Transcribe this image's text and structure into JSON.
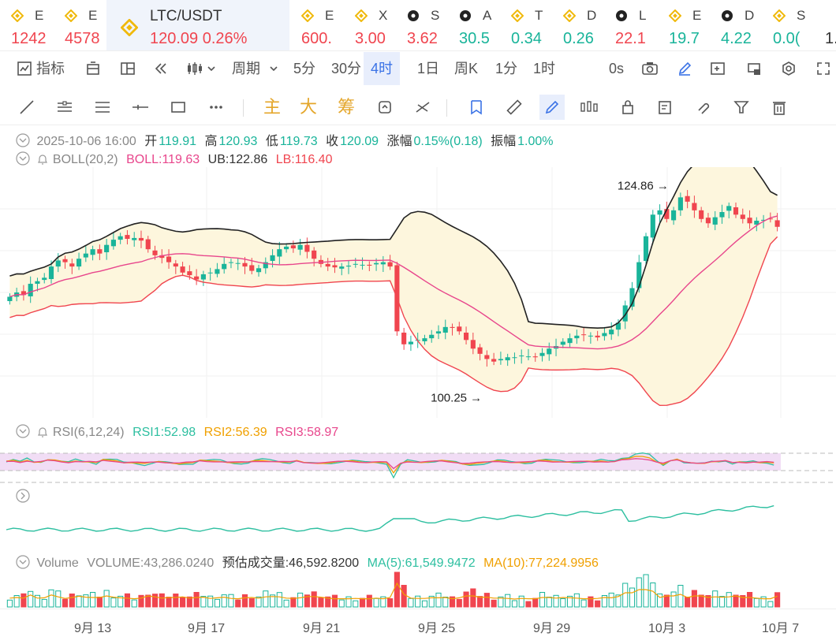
{
  "ticker": [
    {
      "name": "E",
      "price": "1242",
      "dir": "dn",
      "icon": "binance-icon"
    },
    {
      "name": "E",
      "price": "4578",
      "dir": "dn",
      "icon": "binance-icon"
    },
    {
      "name": "LTC/USDT",
      "price": "120.09",
      "change": "0.26%",
      "dir": "dn",
      "icon": "binance-icon",
      "active": true
    },
    {
      "name": "E",
      "price": "600.",
      "dir": "dn",
      "icon": "binance-icon"
    },
    {
      "name": "X",
      "price": "3.00",
      "dir": "dn",
      "icon": "binance-icon"
    },
    {
      "name": "S",
      "price": "3.62",
      "dir": "dn",
      "icon": "dark-coin-icon"
    },
    {
      "name": "A",
      "price": "30.5",
      "dir": "up",
      "icon": "dark-coin-icon"
    },
    {
      "name": "T",
      "price": "0.34",
      "dir": "up",
      "icon": "binance-icon"
    },
    {
      "name": "D",
      "price": "0.26",
      "dir": "up",
      "icon": "binance-icon"
    },
    {
      "name": "L",
      "price": "22.1",
      "dir": "dn",
      "icon": "dark-coin-icon"
    },
    {
      "name": "E",
      "price": "19.7",
      "dir": "up",
      "icon": "binance-icon"
    },
    {
      "name": "D",
      "price": "4.22",
      "dir": "up",
      "icon": "dark-coin-icon"
    },
    {
      "name": "S",
      "price": "0.0(",
      "dir": "up",
      "icon": "binance-icon"
    },
    {
      "name": "",
      "price": "1.",
      "dir": "dk",
      "icon": ""
    }
  ],
  "toolbar": {
    "indicators_label": "指标",
    "period_label": "周期",
    "intervals": [
      "5分",
      "30分",
      "4时",
      "1日",
      "周K",
      "1分",
      "1时"
    ],
    "selected_interval": "4时",
    "countdown": "0s"
  },
  "drawbar": {
    "main": "主",
    "big": "大",
    "chips": "筹"
  },
  "ohlc": {
    "datetime": "2025-10-06 16:00",
    "open_label": "开",
    "open": "119.91",
    "high_label": "高",
    "high": "120.93",
    "low_label": "低",
    "low": "119.73",
    "close_label": "收",
    "close": "120.09",
    "change_label": "涨幅",
    "change": "0.15%(0.18)",
    "amp_label": "振幅",
    "amp": "1.00%"
  },
  "boll": {
    "label": "BOLL(20,2)",
    "mid": "BOLL:119.63",
    "ub": "UB:122.86",
    "lb": "LB:116.40"
  },
  "annotations": {
    "high": "124.86",
    "low": "100.25"
  },
  "rsi": {
    "label": "RSI(6,12,24)",
    "rsi1": "RSI1:52.98",
    "rsi2": "RSI2:56.39",
    "rsi3": "RSI3:58.97"
  },
  "volume": {
    "label": "Volume",
    "volume": "VOLUME:43,286.0240",
    "estimate": "预估成交量:46,592.8200",
    "ma5": "MA(5):61,549.9472",
    "ma10": "MA(10):77,224.9956"
  },
  "xaxis": [
    "9月 13",
    "9月 17",
    "9月 21",
    "9月 25",
    "9月 29",
    "10月 3",
    "10月 7"
  ],
  "colors": {
    "up": "#19b49a",
    "down": "#f0454f",
    "accent": "#3b73e6",
    "binance": "#f0b90b",
    "boll_mid": "#e8468c",
    "boll_lb": "#f0454f",
    "boll_ub": "#222222",
    "boll_fill": "#fdf6dd"
  },
  "chart_data": {
    "type": "candlestick",
    "price_range": [
      98,
      127
    ],
    "close_series": [
      112,
      112.5,
      112.2,
      113.5,
      113.8,
      114.2,
      115.5,
      116.2,
      116,
      115.5,
      116.4,
      117,
      117.5,
      117,
      118,
      118.6,
      119,
      118.7,
      118.8,
      118.5,
      117.5,
      116.8,
      116.5,
      116,
      115.5,
      114.8,
      114.5,
      114,
      114.6,
      114.8,
      115.2,
      115.8,
      116,
      115.9,
      115.5,
      115,
      115.3,
      116,
      116.8,
      117.5,
      117.8,
      117.6,
      118,
      117.2,
      116.4,
      115.8,
      115.5,
      115.4,
      115.5,
      115.6,
      115.8,
      115.7,
      115.6,
      115.9,
      116,
      115.5,
      108,
      106.5,
      106.8,
      107,
      107.2,
      107.6,
      108,
      108.5,
      108.4,
      108,
      107,
      106,
      105.4,
      104.8,
      104.5,
      104.8,
      105,
      105,
      105.2,
      105.1,
      105,
      105.5,
      106,
      106.3,
      106.8,
      107.2,
      107.5,
      107.6,
      107.5,
      107.3,
      107.8,
      108.2,
      109,
      111,
      113,
      116,
      119,
      121.5,
      122,
      121,
      122,
      123.5,
      123,
      122,
      121,
      120.5,
      121.2,
      121.8,
      122.5,
      121.5,
      121,
      120.5,
      120.8,
      120.9,
      121,
      120.09
    ]
  }
}
